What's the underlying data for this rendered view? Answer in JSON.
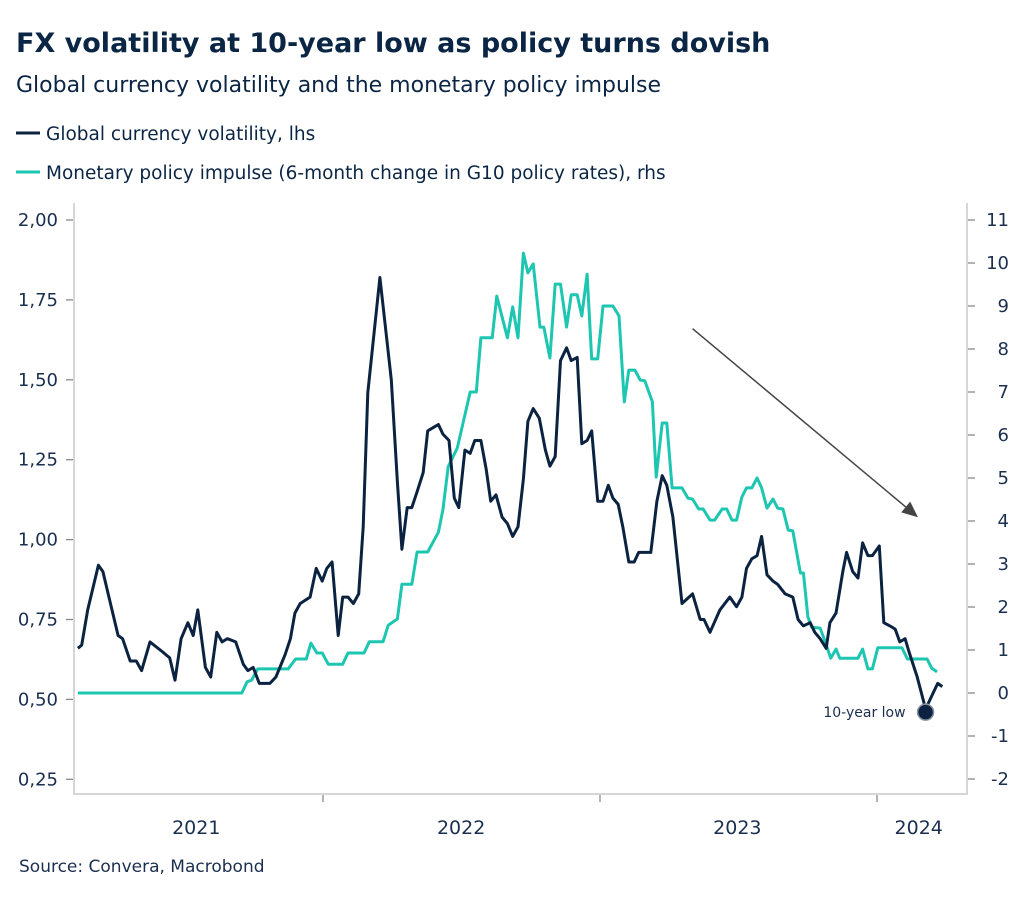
{
  "chart_data": {
    "type": "line",
    "title": "FX volatility at 10-year low as policy turns dovish",
    "subtitle": "Global currency volatility and the monetary policy impulse",
    "source": "Source: Convera, Macrobond",
    "legend_placement": "top-left",
    "grid": false,
    "colors": {
      "volatility": "#0b2340",
      "impulse": "#1cc6b0",
      "text": "#1b2f4f",
      "arrow": "#444444"
    },
    "x_axis": {
      "type": "date",
      "range": [
        "2021-02-08",
        "2024-04-18"
      ],
      "tick_dates": [
        "2022-01-01",
        "2023-01-01",
        "2024-01-01"
      ],
      "labels": [
        {
          "text": "2021",
          "date": "2021-07-18"
        },
        {
          "text": "2022",
          "date": "2022-07-02"
        },
        {
          "text": "2023",
          "date": "2023-07-01"
        },
        {
          "text": "2024",
          "date": "2024-02-25"
        }
      ]
    },
    "y_left": {
      "range": [
        0.25,
        2.0
      ],
      "ticks": [
        2.0,
        1.75,
        1.5,
        1.25,
        1.0,
        0.75,
        0.5,
        0.25
      ],
      "tick_labels": [
        "2,00",
        "1,75",
        "1,50",
        "1,25",
        "1,00",
        "0,75",
        "0,50",
        "0,25"
      ]
    },
    "y_right": {
      "range": [
        -2,
        11
      ],
      "ticks": [
        11,
        10,
        9,
        8,
        7,
        6,
        5,
        4,
        3,
        2,
        1,
        0,
        -1,
        -2
      ],
      "tick_labels": [
        "11",
        "10",
        "9",
        "8",
        "7",
        "6",
        "5",
        "4",
        "3",
        "2",
        "1",
        "0",
        "-1",
        "-2"
      ]
    },
    "series": [
      {
        "name": "Global currency volatility, lhs",
        "axis": "left",
        "color": "#0b2340",
        "points": [
          [
            "2021-02-12",
            0.66
          ],
          [
            "2021-02-17",
            0.67
          ],
          [
            "2021-02-25",
            0.78
          ],
          [
            "2021-03-11",
            0.92
          ],
          [
            "2021-03-17",
            0.9
          ],
          [
            "2021-03-26",
            0.81
          ],
          [
            "2021-04-06",
            0.7
          ],
          [
            "2021-04-12",
            0.69
          ],
          [
            "2021-04-22",
            0.62
          ],
          [
            "2021-04-30",
            0.62
          ],
          [
            "2021-05-07",
            0.59
          ],
          [
            "2021-05-18",
            0.68
          ],
          [
            "2021-06-03",
            0.65
          ],
          [
            "2021-06-13",
            0.63
          ],
          [
            "2021-06-20",
            0.56
          ],
          [
            "2021-06-28",
            0.69
          ],
          [
            "2021-07-07",
            0.74
          ],
          [
            "2021-07-14",
            0.7
          ],
          [
            "2021-07-20",
            0.78
          ],
          [
            "2021-07-30",
            0.6
          ],
          [
            "2021-08-06",
            0.57
          ],
          [
            "2021-08-14",
            0.71
          ],
          [
            "2021-08-21",
            0.68
          ],
          [
            "2021-08-28",
            0.69
          ],
          [
            "2021-09-08",
            0.68
          ],
          [
            "2021-09-18",
            0.61
          ],
          [
            "2021-09-24",
            0.59
          ],
          [
            "2021-10-01",
            0.6
          ],
          [
            "2021-10-09",
            0.55
          ],
          [
            "2021-10-14",
            0.55
          ],
          [
            "2021-10-23",
            0.55
          ],
          [
            "2021-10-31",
            0.57
          ],
          [
            "2021-11-12",
            0.64
          ],
          [
            "2021-11-19",
            0.69
          ],
          [
            "2021-11-25",
            0.77
          ],
          [
            "2021-12-02",
            0.8
          ],
          [
            "2021-12-15",
            0.82
          ],
          [
            "2021-12-23",
            0.91
          ],
          [
            "2021-12-31",
            0.87
          ],
          [
            "2022-01-06",
            0.91
          ],
          [
            "2022-01-13",
            0.93
          ],
          [
            "2022-01-21",
            0.7
          ],
          [
            "2022-01-27",
            0.82
          ],
          [
            "2022-02-03",
            0.82
          ],
          [
            "2022-02-10",
            0.8
          ],
          [
            "2022-02-17",
            0.83
          ],
          [
            "2022-02-23",
            1.04
          ],
          [
            "2022-03-01",
            1.46
          ],
          [
            "2022-03-17",
            1.82
          ],
          [
            "2022-04-01",
            1.5
          ],
          [
            "2022-04-09",
            1.18
          ],
          [
            "2022-04-15",
            0.97
          ],
          [
            "2022-04-22",
            1.1
          ],
          [
            "2022-04-28",
            1.1
          ],
          [
            "2022-05-05",
            1.15
          ],
          [
            "2022-05-13",
            1.21
          ],
          [
            "2022-05-19",
            1.34
          ],
          [
            "2022-05-26",
            1.35
          ],
          [
            "2022-06-02",
            1.36
          ],
          [
            "2022-06-08",
            1.33
          ],
          [
            "2022-06-16",
            1.31
          ],
          [
            "2022-06-23",
            1.13
          ],
          [
            "2022-06-29",
            1.1
          ],
          [
            "2022-07-07",
            1.28
          ],
          [
            "2022-07-14",
            1.27
          ],
          [
            "2022-07-20",
            1.31
          ],
          [
            "2022-07-28",
            1.31
          ],
          [
            "2022-08-04",
            1.22
          ],
          [
            "2022-08-10",
            1.12
          ],
          [
            "2022-08-17",
            1.14
          ],
          [
            "2022-08-25",
            1.07
          ],
          [
            "2022-09-01",
            1.05
          ],
          [
            "2022-09-08",
            1.01
          ],
          [
            "2022-09-15",
            1.04
          ],
          [
            "2022-09-22",
            1.19
          ],
          [
            "2022-09-28",
            1.37
          ],
          [
            "2022-10-05",
            1.41
          ],
          [
            "2022-10-13",
            1.38
          ],
          [
            "2022-10-21",
            1.28
          ],
          [
            "2022-10-27",
            1.23
          ],
          [
            "2022-11-03",
            1.26
          ],
          [
            "2022-11-10",
            1.56
          ],
          [
            "2022-11-18",
            1.6
          ],
          [
            "2022-11-24",
            1.56
          ],
          [
            "2022-12-02",
            1.57
          ],
          [
            "2022-12-08",
            1.3
          ],
          [
            "2022-12-15",
            1.31
          ],
          [
            "2022-12-21",
            1.34
          ],
          [
            "2022-12-29",
            1.12
          ],
          [
            "2023-01-05",
            1.12
          ],
          [
            "2023-01-12",
            1.17
          ],
          [
            "2023-01-18",
            1.13
          ],
          [
            "2023-01-25",
            1.11
          ],
          [
            "2023-01-31",
            1.04
          ],
          [
            "2023-02-08",
            0.93
          ],
          [
            "2023-02-15",
            0.93
          ],
          [
            "2023-02-21",
            0.96
          ],
          [
            "2023-03-09",
            0.96
          ],
          [
            "2023-03-17",
            1.12
          ],
          [
            "2023-03-24",
            1.2
          ],
          [
            "2023-03-30",
            1.17
          ],
          [
            "2023-04-07",
            1.07
          ],
          [
            "2023-04-19",
            0.8
          ],
          [
            "2023-05-03",
            0.83
          ],
          [
            "2023-05-13",
            0.75
          ],
          [
            "2023-05-18",
            0.75
          ],
          [
            "2023-05-26",
            0.71
          ],
          [
            "2023-06-08",
            0.78
          ],
          [
            "2023-06-21",
            0.82
          ],
          [
            "2023-06-30",
            0.79
          ],
          [
            "2023-07-07",
            0.82
          ],
          [
            "2023-07-13",
            0.91
          ],
          [
            "2023-07-20",
            0.94
          ],
          [
            "2023-07-27",
            0.95
          ],
          [
            "2023-08-02",
            1.01
          ],
          [
            "2023-08-09",
            0.89
          ],
          [
            "2023-08-17",
            0.87
          ],
          [
            "2023-08-23",
            0.86
          ],
          [
            "2023-09-02",
            0.83
          ],
          [
            "2023-09-12",
            0.82
          ],
          [
            "2023-09-19",
            0.75
          ],
          [
            "2023-09-26",
            0.73
          ],
          [
            "2023-10-05",
            0.74
          ],
          [
            "2023-10-11",
            0.71
          ],
          [
            "2023-10-18",
            0.69
          ],
          [
            "2023-10-26",
            0.66
          ],
          [
            "2023-10-31",
            0.74
          ],
          [
            "2023-11-08",
            0.77
          ],
          [
            "2023-11-17",
            0.9
          ],
          [
            "2023-11-22",
            0.96
          ],
          [
            "2023-11-30",
            0.9
          ],
          [
            "2023-12-07",
            0.88
          ],
          [
            "2023-12-13",
            0.99
          ],
          [
            "2023-12-20",
            0.95
          ],
          [
            "2023-12-26",
            0.95
          ],
          [
            "2024-01-04",
            0.98
          ],
          [
            "2024-01-10",
            0.74
          ],
          [
            "2024-01-18",
            0.73
          ],
          [
            "2024-01-25",
            0.72
          ],
          [
            "2024-01-31",
            0.68
          ],
          [
            "2024-02-07",
            0.69
          ],
          [
            "2024-02-12",
            0.65
          ],
          [
            "2024-02-23",
            0.57
          ],
          [
            "2024-03-05",
            0.47
          ],
          [
            "2024-03-13",
            0.51
          ],
          [
            "2024-03-21",
            0.55
          ],
          [
            "2024-03-27",
            0.54
          ]
        ]
      },
      {
        "name": "Monetary policy impulse (6-month change in G10 policy rates), rhs",
        "axis": "right",
        "color": "#1cc6b0",
        "points": [
          [
            "2021-02-12",
            0.0
          ],
          [
            "2021-09-16",
            0.0
          ],
          [
            "2021-09-23",
            0.26
          ],
          [
            "2021-09-29",
            0.3
          ],
          [
            "2021-10-07",
            0.56
          ],
          [
            "2021-11-16",
            0.56
          ],
          [
            "2021-11-26",
            0.79
          ],
          [
            "2021-12-10",
            0.79
          ],
          [
            "2021-12-16",
            1.16
          ],
          [
            "2021-12-24",
            0.93
          ],
          [
            "2021-12-31",
            0.93
          ],
          [
            "2022-01-08",
            0.67
          ],
          [
            "2022-01-27",
            0.67
          ],
          [
            "2022-02-03",
            0.93
          ],
          [
            "2022-02-24",
            0.93
          ],
          [
            "2022-03-03",
            1.19
          ],
          [
            "2022-03-21",
            1.19
          ],
          [
            "2022-03-28",
            1.58
          ],
          [
            "2022-04-09",
            1.72
          ],
          [
            "2022-04-15",
            2.53
          ],
          [
            "2022-04-28",
            2.53
          ],
          [
            "2022-05-05",
            3.28
          ],
          [
            "2022-05-19",
            3.28
          ],
          [
            "2022-06-02",
            3.74
          ],
          [
            "2022-06-08",
            4.26
          ],
          [
            "2022-06-15",
            5.26
          ],
          [
            "2022-06-27",
            5.7
          ],
          [
            "2022-07-14",
            7.0
          ],
          [
            "2022-07-22",
            7.0
          ],
          [
            "2022-07-28",
            8.26
          ],
          [
            "2022-08-12",
            8.26
          ],
          [
            "2022-08-18",
            9.23
          ],
          [
            "2022-09-01",
            8.26
          ],
          [
            "2022-09-08",
            8.98
          ],
          [
            "2022-09-15",
            8.26
          ],
          [
            "2022-09-22",
            10.23
          ],
          [
            "2022-09-28",
            9.77
          ],
          [
            "2022-10-05",
            9.98
          ],
          [
            "2022-10-14",
            8.51
          ],
          [
            "2022-10-19",
            8.51
          ],
          [
            "2022-10-27",
            7.79
          ],
          [
            "2022-11-03",
            9.51
          ],
          [
            "2022-11-10",
            9.51
          ],
          [
            "2022-11-18",
            8.51
          ],
          [
            "2022-11-24",
            9.26
          ],
          [
            "2022-12-02",
            9.26
          ],
          [
            "2022-12-08",
            8.77
          ],
          [
            "2022-12-15",
            9.74
          ],
          [
            "2022-12-21",
            7.77
          ],
          [
            "2022-12-29",
            7.77
          ],
          [
            "2023-01-05",
            9.0
          ],
          [
            "2023-01-18",
            9.0
          ],
          [
            "2023-01-26",
            8.77
          ],
          [
            "2023-02-02",
            6.77
          ],
          [
            "2023-02-08",
            7.51
          ],
          [
            "2023-02-16",
            7.51
          ],
          [
            "2023-02-23",
            7.28
          ],
          [
            "2023-03-01",
            7.26
          ],
          [
            "2023-03-11",
            6.77
          ],
          [
            "2023-03-16",
            5.02
          ],
          [
            "2023-03-24",
            6.28
          ],
          [
            "2023-03-30",
            6.28
          ],
          [
            "2023-04-06",
            4.77
          ],
          [
            "2023-04-19",
            4.77
          ],
          [
            "2023-04-27",
            4.53
          ],
          [
            "2023-05-03",
            4.51
          ],
          [
            "2023-05-11",
            4.28
          ],
          [
            "2023-05-17",
            4.28
          ],
          [
            "2023-05-26",
            4.02
          ],
          [
            "2023-06-01",
            4.02
          ],
          [
            "2023-06-11",
            4.28
          ],
          [
            "2023-06-17",
            4.28
          ],
          [
            "2023-06-24",
            4.02
          ],
          [
            "2023-06-30",
            4.02
          ],
          [
            "2023-07-07",
            4.56
          ],
          [
            "2023-07-13",
            4.77
          ],
          [
            "2023-07-20",
            4.77
          ],
          [
            "2023-07-27",
            5.0
          ],
          [
            "2023-08-02",
            4.77
          ],
          [
            "2023-08-09",
            4.3
          ],
          [
            "2023-08-17",
            4.51
          ],
          [
            "2023-08-23",
            4.3
          ],
          [
            "2023-08-30",
            4.28
          ],
          [
            "2023-09-06",
            3.79
          ],
          [
            "2023-09-12",
            3.77
          ],
          [
            "2023-09-22",
            2.79
          ],
          [
            "2023-09-26",
            2.79
          ],
          [
            "2023-10-02",
            1.77
          ],
          [
            "2023-10-07",
            1.53
          ],
          [
            "2023-10-18",
            1.51
          ],
          [
            "2023-10-24",
            1.23
          ],
          [
            "2023-11-01",
            0.81
          ],
          [
            "2023-11-08",
            1.02
          ],
          [
            "2023-11-13",
            0.81
          ],
          [
            "2023-12-07",
            0.81
          ],
          [
            "2023-12-13",
            1.02
          ],
          [
            "2023-12-20",
            0.56
          ],
          [
            "2023-12-26",
            0.56
          ],
          [
            "2024-01-02",
            1.05
          ],
          [
            "2024-02-03",
            1.05
          ],
          [
            "2024-02-10",
            0.79
          ],
          [
            "2024-03-07",
            0.79
          ],
          [
            "2024-03-13",
            0.58
          ],
          [
            "2024-03-20",
            0.49
          ]
        ]
      }
    ],
    "annotations": {
      "low_marker": {
        "label": "10-year low",
        "date": "2024-03-05",
        "value": 0.46,
        "axis": "left"
      },
      "arrow": {
        "from": {
          "date": "2023-05-03",
          "value": 1.66
        },
        "to": {
          "date": "2024-02-24",
          "value": 1.07
        },
        "axis": "left"
      }
    }
  }
}
